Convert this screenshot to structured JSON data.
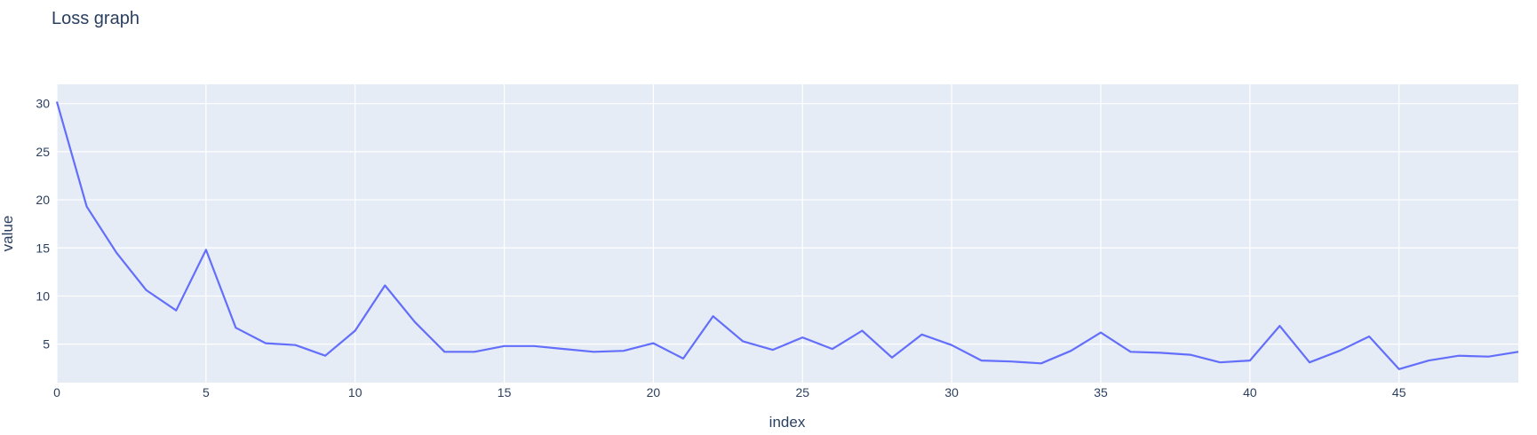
{
  "chart_data": {
    "type": "line",
    "title": "Loss graph",
    "xlabel": "index",
    "ylabel": "value",
    "xlim": [
      0,
      49
    ],
    "ylim": [
      1,
      32
    ],
    "x_ticks": [
      0,
      5,
      10,
      15,
      20,
      25,
      30,
      35,
      40,
      45
    ],
    "y_ticks": [
      5,
      10,
      15,
      20,
      25,
      30
    ],
    "grid": true,
    "colors": {
      "plot_bg": "#e5ecf6",
      "line": "#636efa",
      "text": "#2a3f5f"
    },
    "series": [
      {
        "x": [
          0,
          1,
          2,
          3,
          4,
          5,
          6,
          7,
          8,
          9,
          10,
          11,
          12,
          13,
          14,
          15,
          16,
          17,
          18,
          19,
          20,
          21,
          22,
          23,
          24,
          25,
          26,
          27,
          28,
          29,
          30,
          31,
          32,
          33,
          34,
          35,
          36,
          37,
          38,
          39,
          40,
          41,
          42,
          43,
          44,
          45,
          46,
          47,
          48,
          49
        ],
        "values": [
          30.2,
          19.3,
          14.5,
          10.6,
          8.5,
          14.8,
          6.7,
          5.1,
          4.9,
          3.8,
          6.4,
          11.1,
          7.3,
          4.2,
          4.2,
          4.8,
          4.8,
          4.5,
          4.2,
          4.3,
          5.1,
          3.5,
          7.9,
          5.3,
          4.4,
          5.7,
          4.5,
          6.4,
          3.6,
          6.0,
          4.9,
          3.3,
          3.2,
          3.0,
          4.3,
          6.2,
          4.2,
          4.1,
          3.9,
          3.1,
          3.3,
          6.9,
          3.1,
          4.3,
          5.8,
          2.4,
          3.3,
          3.8,
          3.7,
          4.2
        ]
      }
    ]
  }
}
